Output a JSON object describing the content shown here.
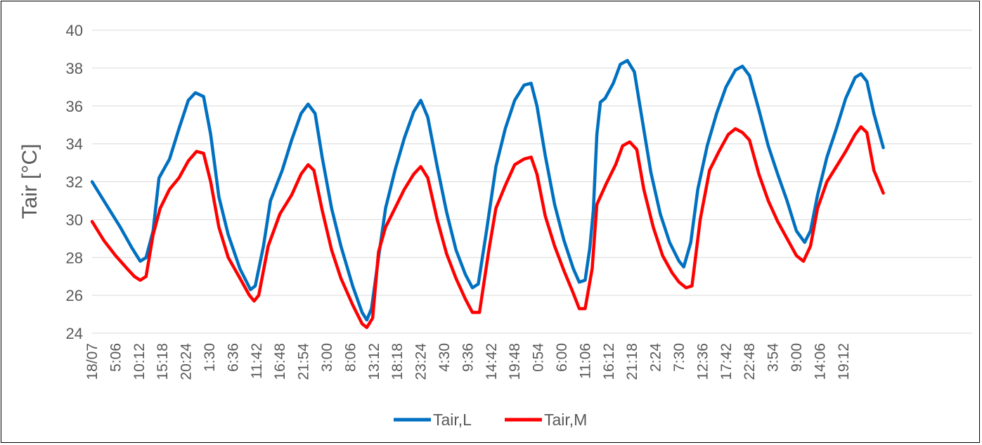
{
  "chart_data": {
    "type": "line",
    "title": "",
    "xlabel": "",
    "ylabel": "Tair [°C]",
    "ylim": [
      24,
      40
    ],
    "yticks": [
      24,
      26,
      28,
      30,
      32,
      34,
      36,
      38,
      40
    ],
    "grid": true,
    "legend_position": "bottom",
    "x_categories": [
      "18/07",
      "5:06",
      "10:12",
      "15:18",
      "20:24",
      "1:30",
      "6:36",
      "11:42",
      "16:48",
      "21:54",
      "3:00",
      "8:06",
      "13:12",
      "18:18",
      "23:24",
      "4:30",
      "9:36",
      "14:42",
      "19:48",
      "0:54",
      "6:00",
      "11:06",
      "16:12",
      "21:18",
      "2:24",
      "7:30",
      "12:36",
      "17:42",
      "22:48",
      "3:54",
      "9:00",
      "14:06",
      "19:12"
    ],
    "series": [
      {
        "name": "Tair,L",
        "color": "#0070c0",
        "points": [
          [
            0,
            32.0
          ],
          [
            0.6,
            30.8
          ],
          [
            1.2,
            29.6
          ],
          [
            1.7,
            28.5
          ],
          [
            2.05,
            27.8
          ],
          [
            2.3,
            28.0
          ],
          [
            2.6,
            29.4
          ],
          [
            2.85,
            32.2
          ],
          [
            3.3,
            33.2
          ],
          [
            3.7,
            34.8
          ],
          [
            4.1,
            36.3
          ],
          [
            4.4,
            36.7
          ],
          [
            4.75,
            36.5
          ],
          [
            5.05,
            34.5
          ],
          [
            5.4,
            31.2
          ],
          [
            5.8,
            29.2
          ],
          [
            6.3,
            27.4
          ],
          [
            6.75,
            26.3
          ],
          [
            6.95,
            26.5
          ],
          [
            7.3,
            28.6
          ],
          [
            7.6,
            31.0
          ],
          [
            8.1,
            32.6
          ],
          [
            8.5,
            34.2
          ],
          [
            8.9,
            35.6
          ],
          [
            9.2,
            36.1
          ],
          [
            9.5,
            35.6
          ],
          [
            9.8,
            33.3
          ],
          [
            10.2,
            30.6
          ],
          [
            10.6,
            28.6
          ],
          [
            11.1,
            26.5
          ],
          [
            11.5,
            25.1
          ],
          [
            11.7,
            24.7
          ],
          [
            11.9,
            25.3
          ],
          [
            12.2,
            28.0
          ],
          [
            12.5,
            30.6
          ],
          [
            12.9,
            32.6
          ],
          [
            13.3,
            34.3
          ],
          [
            13.7,
            35.7
          ],
          [
            14.0,
            36.3
          ],
          [
            14.3,
            35.4
          ],
          [
            14.7,
            32.8
          ],
          [
            15.1,
            30.4
          ],
          [
            15.5,
            28.4
          ],
          [
            15.9,
            27.1
          ],
          [
            16.2,
            26.4
          ],
          [
            16.45,
            26.6
          ],
          [
            16.8,
            29.4
          ],
          [
            17.2,
            32.8
          ],
          [
            17.6,
            34.8
          ],
          [
            18.0,
            36.3
          ],
          [
            18.4,
            37.1
          ],
          [
            18.7,
            37.2
          ],
          [
            18.95,
            36.0
          ],
          [
            19.3,
            33.4
          ],
          [
            19.7,
            30.8
          ],
          [
            20.1,
            28.9
          ],
          [
            20.5,
            27.4
          ],
          [
            20.75,
            26.7
          ],
          [
            21.0,
            26.8
          ],
          [
            21.2,
            28.5
          ],
          [
            21.35,
            30.5
          ],
          [
            21.5,
            34.5
          ],
          [
            21.65,
            36.2
          ],
          [
            21.85,
            36.4
          ],
          [
            22.2,
            37.2
          ],
          [
            22.5,
            38.2
          ],
          [
            22.8,
            38.4
          ],
          [
            23.1,
            37.8
          ],
          [
            23.4,
            35.5
          ],
          [
            23.8,
            32.5
          ],
          [
            24.2,
            30.3
          ],
          [
            24.6,
            28.8
          ],
          [
            25.0,
            27.8
          ],
          [
            25.2,
            27.5
          ],
          [
            25.5,
            28.8
          ],
          [
            25.8,
            31.6
          ],
          [
            26.2,
            33.9
          ],
          [
            26.6,
            35.6
          ],
          [
            27.0,
            37.0
          ],
          [
            27.4,
            37.9
          ],
          [
            27.7,
            38.1
          ],
          [
            28.0,
            37.6
          ],
          [
            28.4,
            35.8
          ],
          [
            28.8,
            33.9
          ],
          [
            29.2,
            32.4
          ],
          [
            29.6,
            31.0
          ],
          [
            30.0,
            29.4
          ],
          [
            30.35,
            28.8
          ],
          [
            30.6,
            29.4
          ],
          [
            30.9,
            31.3
          ],
          [
            31.3,
            33.3
          ],
          [
            31.7,
            34.8
          ],
          [
            32.1,
            36.4
          ],
          [
            32.5,
            37.5
          ],
          [
            32.75,
            37.7
          ],
          [
            33.0,
            37.3
          ],
          [
            33.3,
            35.6
          ],
          [
            33.7,
            33.8
          ]
        ]
      },
      {
        "name": "Tair,M",
        "color": "#ff0000",
        "points": [
          [
            0,
            29.9
          ],
          [
            0.5,
            28.9
          ],
          [
            1.0,
            28.1
          ],
          [
            1.5,
            27.4
          ],
          [
            1.8,
            27.0
          ],
          [
            2.05,
            26.8
          ],
          [
            2.3,
            27.0
          ],
          [
            2.6,
            29.2
          ],
          [
            2.9,
            30.6
          ],
          [
            3.3,
            31.6
          ],
          [
            3.7,
            32.2
          ],
          [
            4.1,
            33.1
          ],
          [
            4.45,
            33.6
          ],
          [
            4.75,
            33.5
          ],
          [
            5.05,
            32.0
          ],
          [
            5.4,
            29.6
          ],
          [
            5.8,
            28.0
          ],
          [
            6.3,
            26.9
          ],
          [
            6.7,
            26.0
          ],
          [
            6.9,
            25.7
          ],
          [
            7.1,
            26.0
          ],
          [
            7.5,
            28.6
          ],
          [
            8.0,
            30.3
          ],
          [
            8.5,
            31.3
          ],
          [
            8.9,
            32.4
          ],
          [
            9.2,
            32.9
          ],
          [
            9.45,
            32.6
          ],
          [
            9.8,
            30.5
          ],
          [
            10.2,
            28.4
          ],
          [
            10.6,
            26.9
          ],
          [
            11.1,
            25.5
          ],
          [
            11.5,
            24.5
          ],
          [
            11.7,
            24.3
          ],
          [
            11.95,
            24.8
          ],
          [
            12.2,
            28.3
          ],
          [
            12.5,
            29.6
          ],
          [
            12.9,
            30.6
          ],
          [
            13.3,
            31.6
          ],
          [
            13.7,
            32.4
          ],
          [
            14.0,
            32.8
          ],
          [
            14.3,
            32.2
          ],
          [
            14.7,
            30.0
          ],
          [
            15.1,
            28.2
          ],
          [
            15.5,
            26.9
          ],
          [
            15.9,
            25.8
          ],
          [
            16.2,
            25.1
          ],
          [
            16.5,
            25.1
          ],
          [
            16.9,
            28.4
          ],
          [
            17.2,
            30.6
          ],
          [
            17.6,
            31.8
          ],
          [
            18.0,
            32.9
          ],
          [
            18.4,
            33.2
          ],
          [
            18.7,
            33.3
          ],
          [
            18.95,
            32.4
          ],
          [
            19.3,
            30.2
          ],
          [
            19.7,
            28.6
          ],
          [
            20.1,
            27.3
          ],
          [
            20.5,
            26.1
          ],
          [
            20.75,
            25.3
          ],
          [
            21.0,
            25.3
          ],
          [
            21.3,
            27.4
          ],
          [
            21.5,
            30.8
          ],
          [
            21.9,
            31.9
          ],
          [
            22.3,
            32.9
          ],
          [
            22.6,
            33.9
          ],
          [
            22.9,
            34.1
          ],
          [
            23.2,
            33.7
          ],
          [
            23.5,
            31.6
          ],
          [
            23.9,
            29.6
          ],
          [
            24.3,
            28.1
          ],
          [
            24.7,
            27.2
          ],
          [
            25.0,
            26.7
          ],
          [
            25.3,
            26.4
          ],
          [
            25.55,
            26.5
          ],
          [
            25.9,
            30.0
          ],
          [
            26.3,
            32.6
          ],
          [
            26.7,
            33.6
          ],
          [
            27.1,
            34.5
          ],
          [
            27.4,
            34.8
          ],
          [
            27.7,
            34.6
          ],
          [
            28.0,
            34.2
          ],
          [
            28.4,
            32.4
          ],
          [
            28.8,
            31.0
          ],
          [
            29.2,
            29.9
          ],
          [
            29.6,
            29.0
          ],
          [
            30.0,
            28.1
          ],
          [
            30.3,
            27.8
          ],
          [
            30.6,
            28.6
          ],
          [
            30.9,
            30.6
          ],
          [
            31.3,
            32.0
          ],
          [
            31.7,
            32.8
          ],
          [
            32.1,
            33.6
          ],
          [
            32.5,
            34.5
          ],
          [
            32.75,
            34.9
          ],
          [
            33.0,
            34.6
          ],
          [
            33.3,
            32.6
          ],
          [
            33.7,
            31.4
          ]
        ]
      }
    ]
  }
}
